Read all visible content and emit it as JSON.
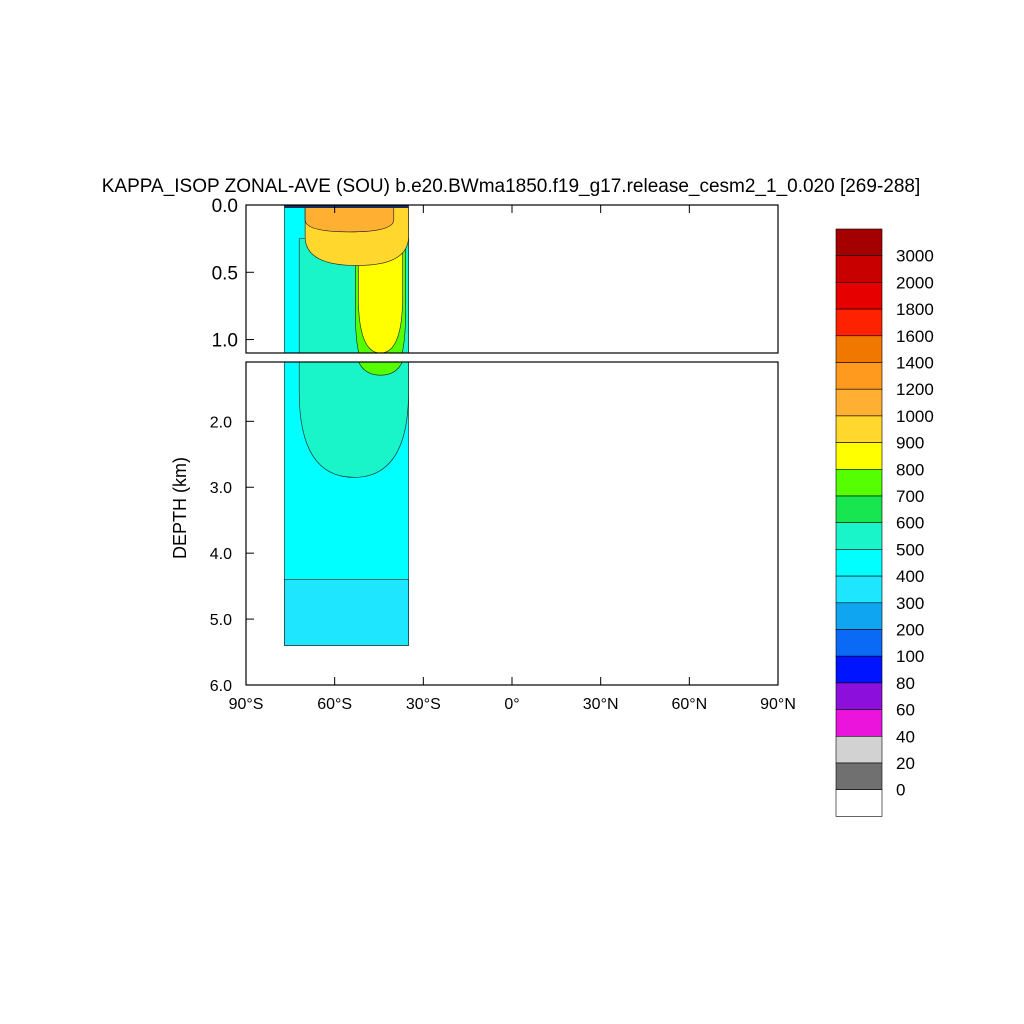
{
  "chart_data": {
    "type": "heatmap",
    "title": "KAPPA_ISOP ZONAL-AVE (SOU) b.e20.BWma1850.f19_g17.release_cesm2_1_0.020 [269-288]",
    "xlabel": "",
    "ylabel": "DEPTH (km)",
    "xlim": [
      -90,
      90
    ],
    "ylim_top_panel": [
      0.0,
      1.1
    ],
    "ylim_bottom_panel": [
      1.1,
      6.0
    ],
    "x_ticks": [
      {
        "value": -90,
        "label": "90°S"
      },
      {
        "value": -60,
        "label": "60°S"
      },
      {
        "value": -30,
        "label": "30°S"
      },
      {
        "value": 0,
        "label": "0°"
      },
      {
        "value": 30,
        "label": "30°N"
      },
      {
        "value": 60,
        "label": "60°N"
      },
      {
        "value": 90,
        "label": "90°N"
      }
    ],
    "y_ticks_top": [
      {
        "value": 0.0,
        "label": "0.0"
      },
      {
        "value": 0.5,
        "label": "0.5"
      },
      {
        "value": 1.0,
        "label": "1.0"
      }
    ],
    "y_ticks_bottom": [
      {
        "value": 2.0,
        "label": "2.0"
      },
      {
        "value": 3.0,
        "label": "3.0"
      },
      {
        "value": 4.0,
        "label": "4.0"
      },
      {
        "value": 5.0,
        "label": "5.0"
      },
      {
        "value": 6.0,
        "label": "6.0"
      }
    ],
    "colorbar": {
      "labels": [
        "3000",
        "2000",
        "1800",
        "1600",
        "1400",
        "1200",
        "1000",
        "900",
        "800",
        "700",
        "600",
        "500",
        "400",
        "300",
        "200",
        "100",
        "80",
        "60",
        "40",
        "20",
        "0"
      ],
      "colors": [
        "#a50000",
        "#c80000",
        "#e60000",
        "#ff2200",
        "#f07800",
        "#ff9a1e",
        "#ffaf32",
        "#ffd72d",
        "#ffff00",
        "#55ff00",
        "#18e650",
        "#19f5c8",
        "#00ffff",
        "#1ee6ff",
        "#0fa5f0",
        "#0a69f5",
        "#0014ff",
        "#8c0fdc",
        "#eb14dc",
        "#d2d2d2",
        "#707070",
        "#ffffff"
      ]
    },
    "data_extent": {
      "lat_min": -77,
      "lat_max": -35,
      "depth_max": 5.4
    },
    "regions": [
      {
        "band": "500",
        "lat": [
          -77,
          -35
        ],
        "depth": [
          0.0,
          5.4
        ]
      },
      {
        "band": "400",
        "lat": [
          -77,
          -35
        ],
        "depth": [
          4.4,
          5.4
        ]
      },
      {
        "band": "600",
        "lat": [
          -72,
          -35
        ],
        "depth": [
          0.25,
          2.85
        ]
      },
      {
        "band": "800",
        "lat": [
          -53,
          -36
        ],
        "depth": [
          0.3,
          1.3
        ]
      },
      {
        "band": "900",
        "lat": [
          -52,
          -37
        ],
        "depth": [
          0.25,
          1.1
        ]
      },
      {
        "band": "1000",
        "lat": [
          -70,
          -35
        ],
        "depth": [
          0.02,
          0.45
        ]
      },
      {
        "band": "1200",
        "lat": [
          -70,
          -40
        ],
        "depth": [
          0.02,
          0.2
        ]
      }
    ]
  }
}
